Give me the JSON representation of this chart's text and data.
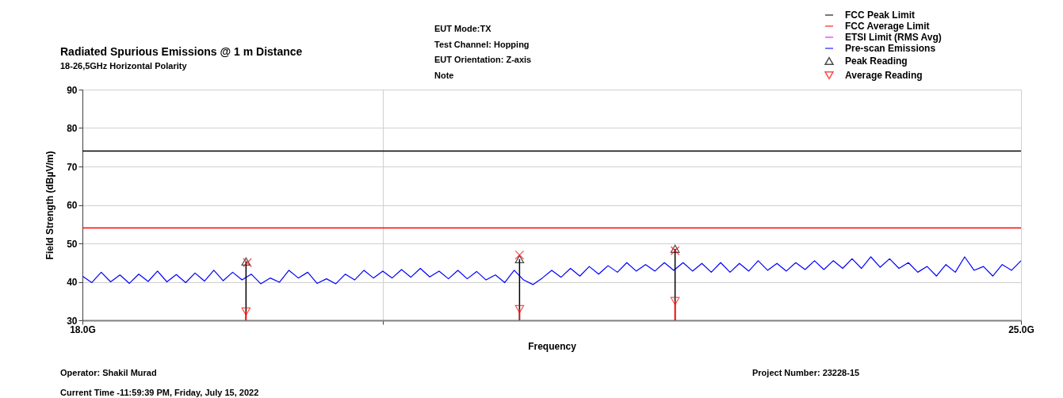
{
  "chart_data": {
    "type": "line",
    "title": "Radiated Spurious Emissions @ 1 m Distance",
    "subtitle": "18-26,5GHz Horizontal Polarity",
    "xlabel": "Frequency",
    "ylabel": "Field Strength (dBµV/m)",
    "annotations": [
      "EUT Mode:TX",
      "Test Channel: Hopping",
      "EUT Orientation: Z-axis",
      "Note",
      "Operator: Shakil Murad",
      "Current Time -11:59:39 PM, Friday, July 15, 2022",
      "Project Number: 23228-15"
    ],
    "xlim": [
      18.0,
      25.0
    ],
    "xticks": [
      {
        "value": 18.0,
        "label": "18.0G"
      },
      {
        "value": 20.24,
        "label": null
      },
      {
        "value": 25.0,
        "label": "25.0G"
      }
    ],
    "ylim": [
      30,
      90
    ],
    "yticks": [
      30,
      40,
      50,
      60,
      70,
      80,
      90
    ],
    "grid": true,
    "legend": "top right",
    "series": [
      {
        "name": "FCC Peak Limit",
        "color": "#000000",
        "x": [
          18.0,
          25.0
        ],
        "values": [
          74,
          74
        ]
      },
      {
        "name": "FCC Average Limit",
        "color": "#ff0000",
        "x": [
          18.0,
          25.0
        ],
        "values": [
          54,
          54
        ]
      },
      {
        "name": "ETSI Limit (RMS Avg)",
        "color": "#ff00ff"
      },
      {
        "name": "Pre-scan Emissions",
        "color": "#0000ff",
        "x": [
          18.0,
          18.07,
          18.14,
          18.21,
          18.28,
          18.35,
          18.42,
          18.49,
          18.56,
          18.63,
          18.7,
          18.77,
          18.84,
          18.91,
          18.98,
          19.05,
          19.12,
          19.19,
          19.26,
          19.33,
          19.4,
          19.47,
          19.54,
          19.61,
          19.68,
          19.75,
          19.82,
          19.89,
          19.96,
          20.03,
          20.1,
          20.17,
          20.24,
          20.31,
          20.38,
          20.45,
          20.52,
          20.59,
          20.66,
          20.73,
          20.8,
          20.87,
          20.94,
          21.01,
          21.08,
          21.15,
          21.22,
          21.29,
          21.36,
          21.43,
          21.5,
          21.57,
          21.64,
          21.71,
          21.78,
          21.85,
          21.92,
          21.99,
          22.06,
          22.13,
          22.2,
          22.27,
          22.34,
          22.41,
          22.48,
          22.55,
          22.62,
          22.69,
          22.76,
          22.83,
          22.9,
          22.97,
          23.04,
          23.11,
          23.18,
          23.25,
          23.32,
          23.39,
          23.46,
          23.53,
          23.6,
          23.67,
          23.74,
          23.81,
          23.88,
          23.95,
          24.02,
          24.09,
          24.16,
          24.23,
          24.3,
          24.37,
          24.44,
          24.51,
          24.58,
          24.65,
          24.72,
          24.79,
          24.86,
          24.93,
          25.0
        ],
        "values": [
          41.5,
          39.8,
          42.5,
          40.0,
          41.8,
          39.6,
          42.0,
          40.1,
          42.8,
          40.0,
          41.9,
          39.8,
          42.3,
          40.2,
          43.0,
          40.3,
          42.5,
          40.5,
          42.0,
          39.5,
          41.0,
          39.9,
          43.0,
          41.0,
          42.5,
          39.6,
          40.8,
          39.5,
          42.0,
          40.5,
          43.0,
          41.0,
          42.8,
          41.0,
          43.2,
          41.2,
          43.5,
          41.3,
          42.8,
          40.8,
          43.0,
          40.8,
          42.7,
          40.5,
          41.8,
          39.8,
          43.0,
          40.5,
          39.3,
          41.0,
          43.0,
          41.2,
          43.5,
          41.5,
          44.0,
          42.0,
          44.2,
          42.5,
          45.0,
          42.8,
          44.5,
          42.8,
          45.0,
          43.0,
          45.0,
          42.8,
          44.8,
          42.5,
          45.0,
          42.5,
          44.8,
          42.8,
          45.5,
          43.0,
          44.8,
          42.8,
          45.0,
          43.2,
          45.5,
          43.2,
          45.5,
          43.5,
          46.0,
          43.5,
          46.5,
          43.8,
          46.0,
          43.5,
          45.0,
          42.5,
          44.0,
          41.5,
          44.5,
          42.5,
          46.5,
          43.0,
          44.0,
          41.5,
          44.5,
          43.0,
          45.5
        ]
      },
      {
        "name": "Peak Reading",
        "type": "lollipop",
        "color": "#000000",
        "marker": "triangle",
        "x": [
          19.22,
          21.26,
          22.42
        ],
        "values": [
          45.3,
          45.9,
          48.6
        ]
      },
      {
        "name": "Average Reading",
        "type": "lollipop",
        "color": "#ff0000",
        "marker": "triangle-down",
        "x": [
          19.22,
          21.26,
          22.42
        ],
        "values": [
          32.3,
          32.9,
          35.0
        ]
      },
      {
        "type": "scatter",
        "color": "#ff0000",
        "marker": "cross",
        "x": [
          19.23,
          21.26,
          22.42
        ],
        "values": [
          45.0,
          47.0,
          48.1
        ]
      }
    ]
  }
}
